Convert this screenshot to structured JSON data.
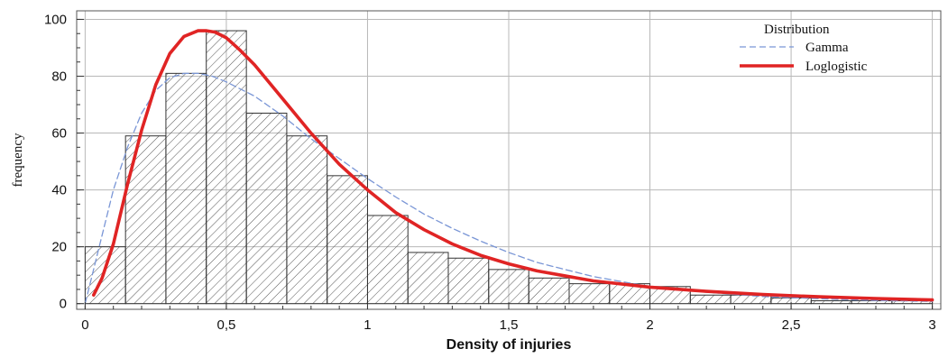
{
  "chart_data": {
    "type": "bar",
    "title": "",
    "xlabel": "Density of injuries",
    "ylabel": "frequency",
    "xlim": [
      -0.03,
      3.03
    ],
    "ylim": [
      -2,
      103
    ],
    "x_ticks": [
      0,
      0.5,
      1,
      1.5,
      2,
      2.5,
      3
    ],
    "x_tick_labels": [
      "0",
      "0,5",
      "1",
      "1,5",
      "2",
      "2,5",
      "3"
    ],
    "y_ticks": [
      0,
      20,
      40,
      60,
      80,
      100
    ],
    "y_tick_labels": [
      "0",
      "20",
      "40",
      "60",
      "80",
      "100"
    ],
    "grid": true,
    "histogram": {
      "bin_edges": [
        0,
        0.143,
        0.286,
        0.429,
        0.571,
        0.714,
        0.857,
        1.0,
        1.143,
        1.286,
        1.429,
        1.571,
        1.714,
        1.857,
        2.0,
        2.143,
        2.286,
        2.429,
        2.571,
        2.714,
        2.857,
        3.0
      ],
      "counts": [
        20,
        59,
        81,
        96,
        67,
        59,
        45,
        31,
        18,
        16,
        12,
        9,
        7,
        7,
        6,
        3,
        3,
        2,
        1,
        1,
        1
      ],
      "fill": "diagonal hatch",
      "edge_color": "#333333"
    },
    "legend": {
      "title": "Distribution",
      "position": "top-right"
    },
    "series": [
      {
        "name": "Gamma",
        "style": "dashed",
        "color": "#7a96d6",
        "x": [
          0.0,
          0.05,
          0.1,
          0.15,
          0.2,
          0.25,
          0.3,
          0.35,
          0.4,
          0.45,
          0.5,
          0.6,
          0.7,
          0.8,
          0.9,
          1.0,
          1.1,
          1.2,
          1.3,
          1.4,
          1.5,
          1.6,
          1.7,
          1.8,
          2.0,
          2.2,
          2.4,
          2.6,
          2.8,
          3.0
        ],
        "y": [
          0,
          20,
          40,
          55,
          67,
          75,
          79.5,
          81,
          81,
          80,
          78,
          73,
          66,
          58,
          51,
          44,
          37.5,
          31.5,
          26.5,
          22,
          18,
          14.5,
          12,
          9.5,
          6,
          4,
          2.5,
          1.7,
          1.1,
          0.8
        ]
      },
      {
        "name": "Loglogistic",
        "style": "solid",
        "color": "#e02424",
        "x": [
          0.03,
          0.06,
          0.1,
          0.15,
          0.2,
          0.25,
          0.3,
          0.35,
          0.4,
          0.43,
          0.46,
          0.5,
          0.55,
          0.6,
          0.7,
          0.8,
          0.9,
          1.0,
          1.1,
          1.2,
          1.3,
          1.4,
          1.5,
          1.6,
          1.8,
          2.0,
          2.2,
          2.4,
          2.6,
          2.8,
          3.0
        ],
        "y": [
          3,
          9,
          21,
          42,
          61,
          77,
          88,
          94,
          96,
          96,
          95.5,
          93.5,
          89,
          84,
          72,
          60,
          49,
          40,
          32,
          26,
          21,
          17,
          14,
          11.5,
          8,
          5.8,
          4.3,
          3.2,
          2.4,
          1.8,
          1.3
        ]
      }
    ]
  }
}
